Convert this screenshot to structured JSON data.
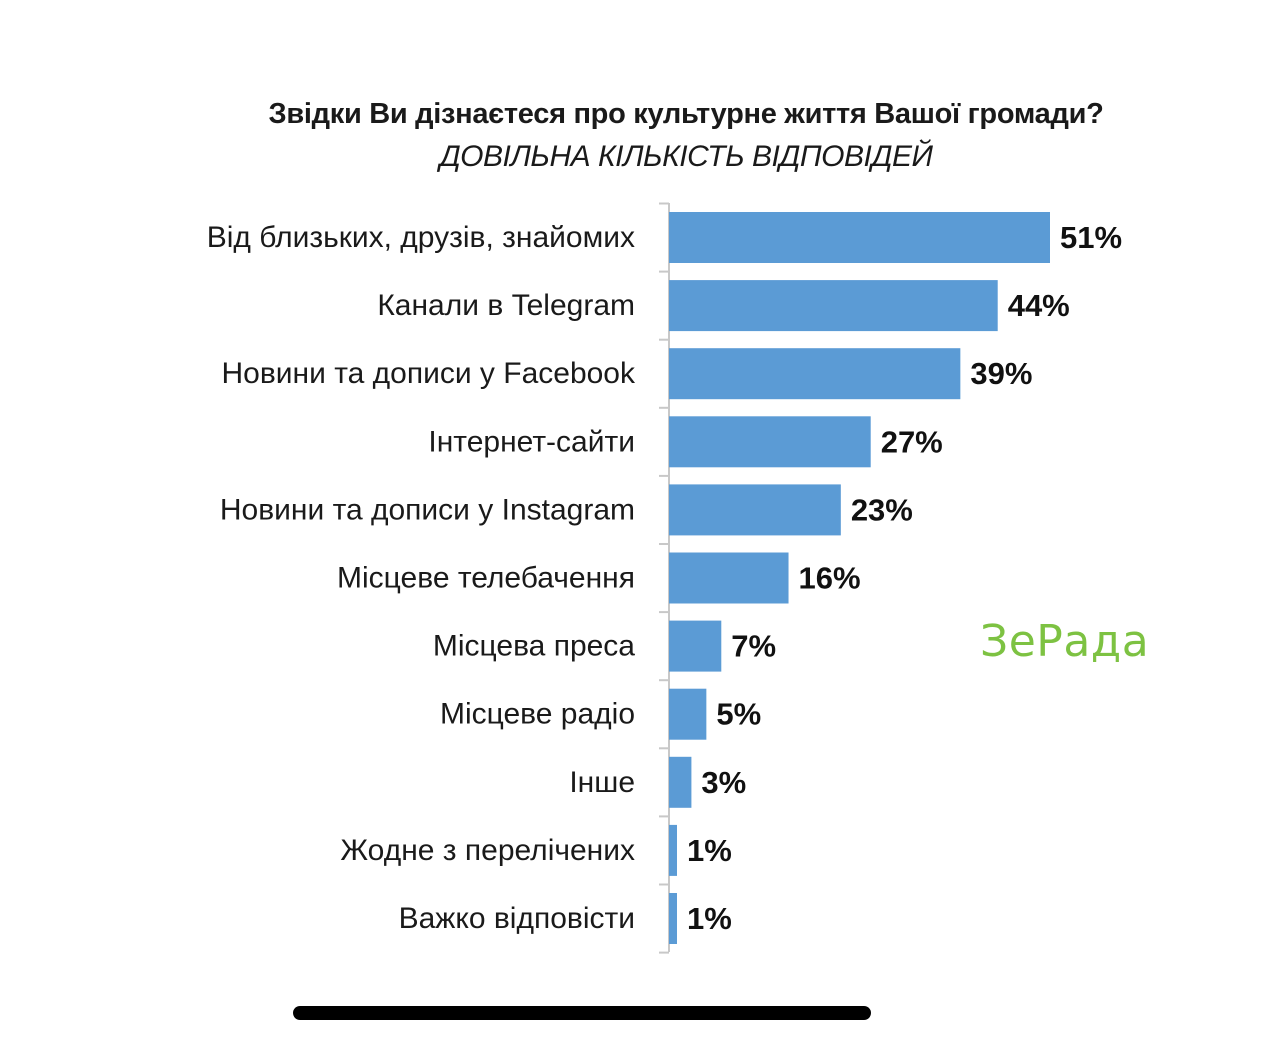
{
  "chart_data": {
    "type": "bar",
    "orientation": "horizontal",
    "title": "Звідки Ви дізнаєтеся про культурне життя Вашої громади?",
    "subtitle": "ДОВІЛЬНА КІЛЬКІСТЬ ВІДПОВІДЕЙ",
    "categories": [
      "Від близьких, друзів, знайомих",
      "Канали в Telegram",
      "Новини та дописи у Facebook",
      "Інтернет-сайти",
      "Новини та дописи у Instagram",
      "Місцеве телебачення",
      "Місцева преса",
      "Місцеве радіо",
      "Інше",
      "Жодне з перелічених",
      "Важко відповісти"
    ],
    "values": [
      51,
      44,
      39,
      27,
      23,
      16,
      7,
      5,
      3,
      1,
      1
    ],
    "value_labels": [
      "51%",
      "44%",
      "39%",
      "27%",
      "23%",
      "16%",
      "7%",
      "5%",
      "3%",
      "1%",
      "1%"
    ],
    "unit": "%",
    "xlim": [
      0,
      51
    ],
    "grid": false,
    "bar_color": "#5b9bd5"
  },
  "watermark": {
    "text": "ЗеРада",
    "color": "#7dc242"
  }
}
